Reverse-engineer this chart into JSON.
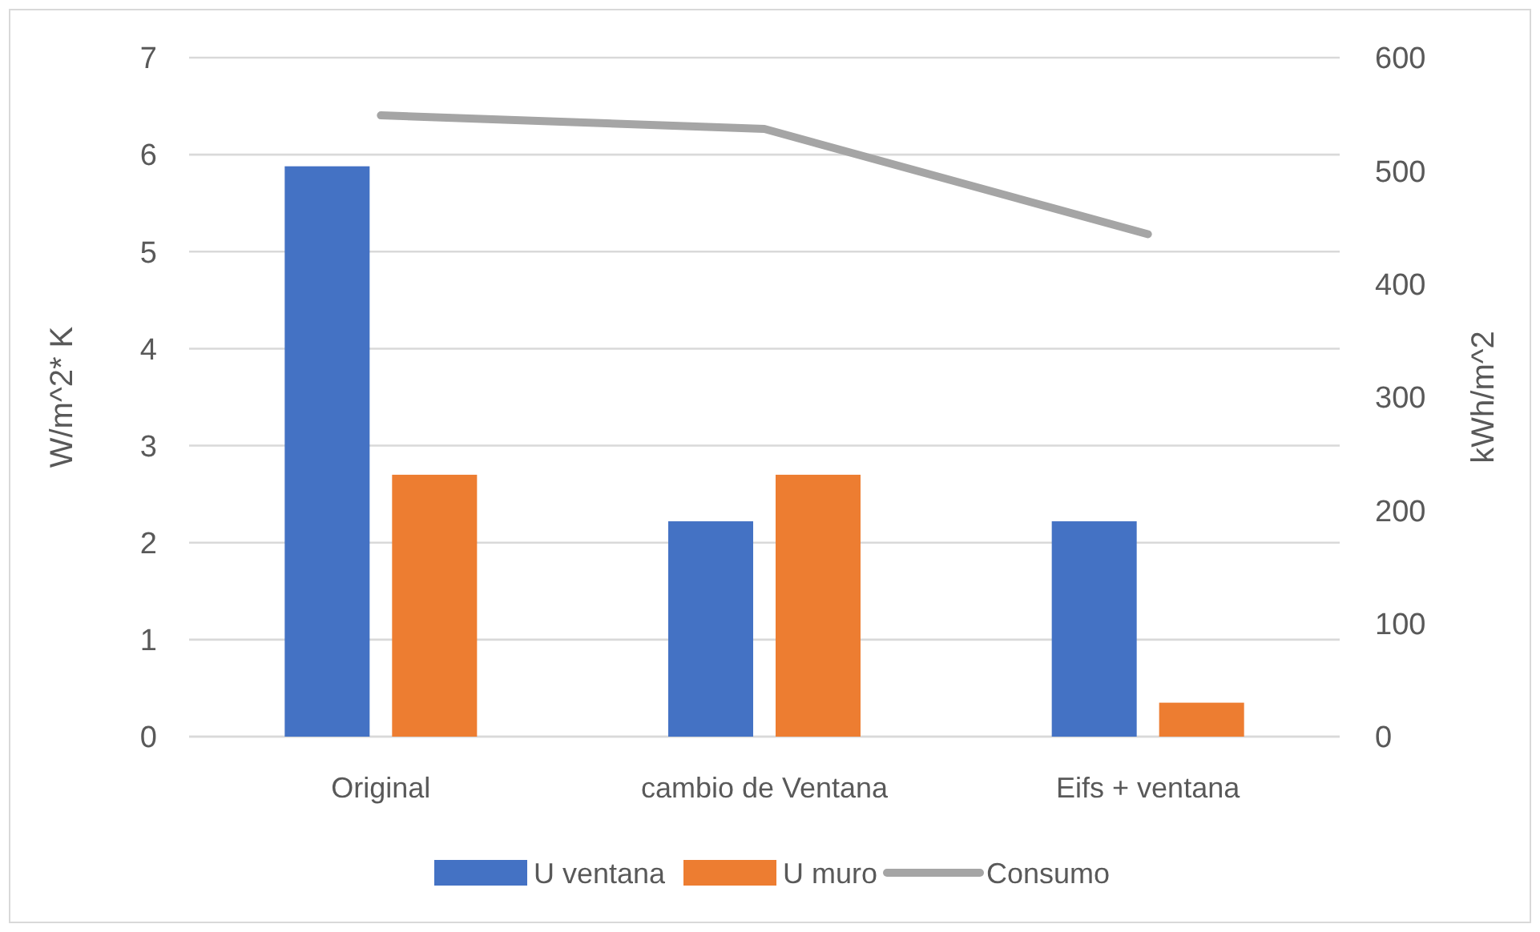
{
  "chart_data": {
    "type": "bar",
    "categories": [
      "Original",
      "cambio de Ventana",
      "Eifs + ventana"
    ],
    "series": [
      {
        "name": "U ventana",
        "color": "#4472c4",
        "values": [
          5.88,
          2.22,
          2.22
        ]
      },
      {
        "name": "U muro",
        "color": "#ed7d31",
        "values": [
          2.7,
          2.7,
          0.35
        ]
      },
      {
        "name": "Consumo",
        "type": "line",
        "axis": "y2",
        "color": "#a5a5a5",
        "values": [
          549,
          537,
          444
        ]
      }
    ],
    "ylabel": "W/m^2* K",
    "y2label": "kWh/m^2",
    "ylim": [
      0,
      7
    ],
    "yticks": [
      0,
      1,
      2,
      3,
      4,
      5,
      6,
      7
    ],
    "y2lim": [
      0,
      600
    ],
    "y2ticks": [
      0,
      100,
      200,
      300,
      400,
      500,
      600
    ],
    "grid": "y",
    "legend": "bottom"
  }
}
